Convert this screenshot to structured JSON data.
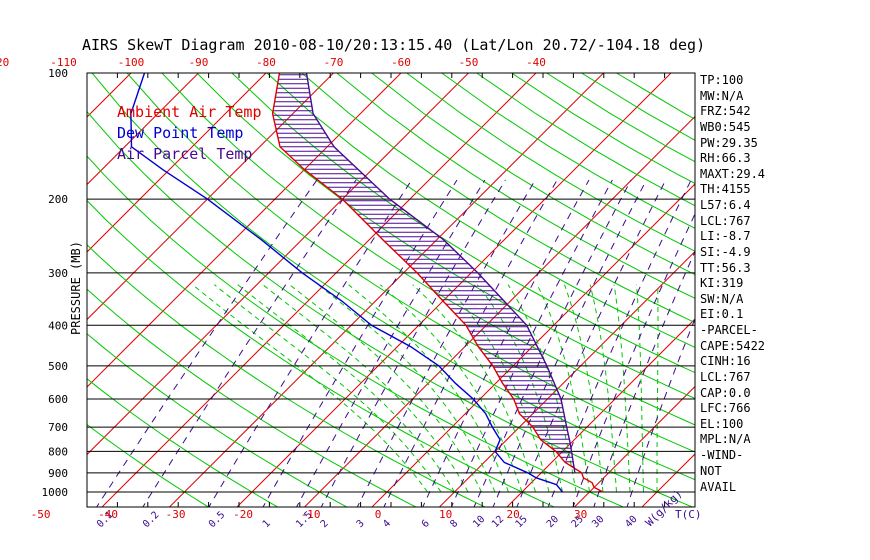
{
  "chart_data": {
    "type": "line",
    "title": "AIRS SkewT Diagram 2010-08-10/20:13:15.40 (Lat/Lon 20.72/-104.18 deg)",
    "ylabel": "PRESSURE (MB)",
    "xlabel": "T(C)",
    "mixing_unit": "W(g/kg)",
    "pressure_ticks": [
      "100",
      "200",
      "300",
      "400",
      "500",
      "600",
      "700",
      "800",
      "900",
      "1000"
    ],
    "bottom_temp_ticks": [
      "-50",
      "-40",
      "-30",
      "-20",
      "-10",
      "0",
      "10",
      "20",
      "30"
    ],
    "top_temp_ticks": [
      "-120",
      "-110",
      "-100",
      "-90",
      "-80",
      "-70",
      "-60",
      "-50",
      "-40"
    ],
    "mixing_ratio_labels": [
      "0.1",
      "0.2",
      "0.5",
      "1",
      "1.5",
      "2",
      "3",
      "4",
      "6",
      "8",
      "10",
      "12",
      "15",
      "20",
      "25",
      "30",
      "40"
    ],
    "legend": [
      {
        "label": "Ambient Air Temp",
        "color": "#e00000"
      },
      {
        "label": "Dew Point Temp",
        "color": "#0000d0"
      },
      {
        "label": "Air Parcel Temp",
        "color": "#4a0a90"
      }
    ],
    "series": [
      {
        "name": "Ambient Air Temp",
        "color": "#e00000",
        "points": [
          [
            1000,
            32
          ],
          [
            975,
            30
          ],
          [
            950,
            29
          ],
          [
            925,
            27
          ],
          [
            900,
            26
          ],
          [
            850,
            22
          ],
          [
            800,
            19
          ],
          [
            750,
            15
          ],
          [
            700,
            12
          ],
          [
            650,
            8
          ],
          [
            600,
            5
          ],
          [
            550,
            1
          ],
          [
            500,
            -3
          ],
          [
            450,
            -8
          ],
          [
            400,
            -13
          ],
          [
            350,
            -20
          ],
          [
            300,
            -28
          ],
          [
            250,
            -38
          ],
          [
            200,
            -50
          ],
          [
            170,
            -60
          ],
          [
            150,
            -67
          ],
          [
            125,
            -73
          ],
          [
            100,
            -78
          ]
        ]
      },
      {
        "name": "Dew Point Temp",
        "color": "#0000d0",
        "points": [
          [
            1000,
            26
          ],
          [
            960,
            24
          ],
          [
            925,
            20
          ],
          [
            900,
            18
          ],
          [
            850,
            13
          ],
          [
            800,
            10
          ],
          [
            750,
            9
          ],
          [
            700,
            6
          ],
          [
            650,
            3
          ],
          [
            600,
            -1
          ],
          [
            550,
            -6
          ],
          [
            500,
            -11
          ],
          [
            450,
            -18
          ],
          [
            400,
            -27
          ],
          [
            350,
            -35
          ],
          [
            300,
            -45
          ],
          [
            250,
            -56
          ],
          [
            200,
            -70
          ],
          [
            170,
            -81
          ],
          [
            150,
            -89
          ],
          [
            125,
            -94
          ],
          [
            100,
            -98
          ]
        ]
      },
      {
        "name": "Air Parcel Temp",
        "color": "#4a0a90",
        "points": [
          [
            900,
            25
          ],
          [
            767,
            20
          ],
          [
            700,
            17
          ],
          [
            600,
            12
          ],
          [
            500,
            5
          ],
          [
            400,
            -4
          ],
          [
            300,
            -19
          ],
          [
            250,
            -29
          ],
          [
            200,
            -43
          ],
          [
            150,
            -59
          ],
          [
            125,
            -67
          ],
          [
            100,
            -74
          ]
        ]
      }
    ],
    "stats": [
      "TP:100",
      "MW:N/A",
      "FRZ:542",
      "WB0:545",
      "PW:29.35",
      "RH:66.3",
      "MAXT:29.4",
      "TH:4155",
      "L57:6.4",
      "LCL:767",
      "LI:-8.7",
      "SI:-4.9",
      "TT:56.3",
      "KI:319",
      "SW:N/A",
      "EI:0.1",
      "-PARCEL-",
      "CAPE:5422",
      "CINH:16",
      "LCL:767",
      "CAP:0.0",
      "LFC:766",
      "EL:100",
      "MPL:N/A",
      "-WIND-",
      "NOT",
      "AVAIL"
    ],
    "colors": {
      "isotherm": "#e00000",
      "dry_adiabat": "#00c800",
      "moist_adiabat": "#00c800",
      "mixing_ratio": "#3c0a8c",
      "isobar": "#000000",
      "cape_hatch": "#4a0a90"
    }
  }
}
